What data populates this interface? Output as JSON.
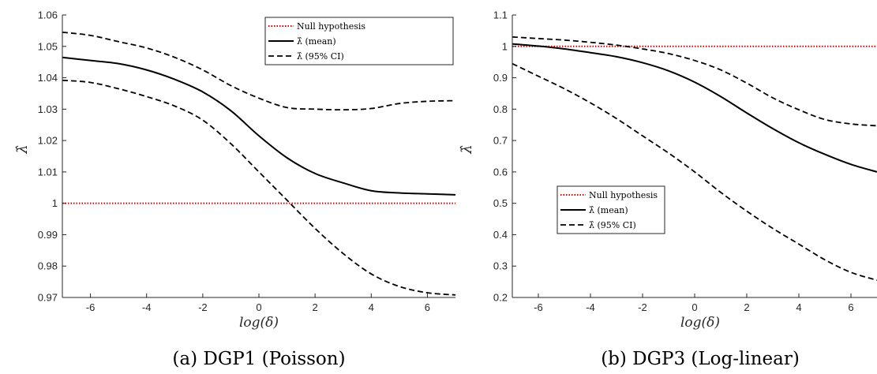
{
  "colors": {
    "null": "#e00000",
    "line": "#000000",
    "axis": "#262626"
  },
  "chart_data": [
    {
      "type": "line",
      "caption": "(a) DGP1 (Poisson)",
      "xlabel": "log(δ)",
      "ylabel": "λ̂",
      "xlim": [
        -7,
        7
      ],
      "ylim": [
        0.97,
        1.06
      ],
      "xticks": [
        -6,
        -4,
        -2,
        0,
        2,
        4,
        6
      ],
      "yticks": [
        0.97,
        0.98,
        0.99,
        1,
        1.01,
        1.02,
        1.03,
        1.04,
        1.05,
        1.06
      ],
      "ytick_labels": [
        "0.97",
        "0.98",
        "0.99",
        "1",
        "1.01",
        "1.02",
        "1.03",
        "1.04",
        "1.05",
        "1.06"
      ],
      "grid": false,
      "legend_position": "top-right",
      "x": [
        -7,
        -6,
        -5,
        -4,
        -3,
        -2,
        -1,
        0,
        1,
        2,
        3,
        4,
        5,
        6,
        7
      ],
      "series": [
        {
          "name": "Null hypothesis",
          "style": "dotted-red",
          "values": [
            1,
            1,
            1,
            1,
            1,
            1,
            1,
            1,
            1,
            1,
            1,
            1,
            1,
            1,
            1
          ]
        },
        {
          "name": "λ̂ (mean)",
          "style": "solid",
          "values": [
            1.0465,
            1.0455,
            1.0445,
            1.0425,
            1.0395,
            1.0355,
            1.0295,
            1.0215,
            1.0145,
            1.0095,
            1.0065,
            1.004,
            1.0033,
            1.003,
            1.0027
          ]
        },
        {
          "name": "λ̂ (95% CI)",
          "style": "dashed",
          "values": [
            1.0545,
            1.0535,
            1.0515,
            1.0495,
            1.0465,
            1.0425,
            1.0375,
            1.0335,
            1.0305,
            1.03,
            1.0298,
            1.0302,
            1.0318,
            1.0325,
            1.0327
          ]
        },
        {
          "name": "",
          "style": "dashed",
          "values": [
            1.0392,
            1.0385,
            1.0365,
            1.034,
            1.031,
            1.0265,
            1.019,
            1.01,
            1.001,
            0.992,
            0.984,
            0.9775,
            0.9735,
            0.9715,
            0.9708
          ]
        }
      ]
    },
    {
      "type": "line",
      "caption": "(b) DGP3 (Log-linear)",
      "xlabel": "log(δ)",
      "ylabel": "λ̂",
      "xlim": [
        -7,
        7
      ],
      "ylim": [
        0.2,
        1.1
      ],
      "xticks": [
        -6,
        -4,
        -2,
        0,
        2,
        4,
        6
      ],
      "yticks": [
        0.2,
        0.3,
        0.4,
        0.5,
        0.6,
        0.7,
        0.8,
        0.9,
        1,
        1.1
      ],
      "ytick_labels": [
        "0.2",
        "0.3",
        "0.4",
        "0.5",
        "0.6",
        "0.7",
        "0.8",
        "0.9",
        "1",
        "1.1"
      ],
      "grid": false,
      "legend_position": "center-left",
      "x": [
        -7,
        -6,
        -5,
        -4,
        -3,
        -2,
        -1,
        0,
        1,
        2,
        3,
        4,
        5,
        6,
        7
      ],
      "series": [
        {
          "name": "Null hypothesis",
          "style": "dotted-red",
          "values": [
            1,
            1,
            1,
            1,
            1,
            1,
            1,
            1,
            1,
            1,
            1,
            1,
            1,
            1,
            1
          ]
        },
        {
          "name": "λ̂ (mean)",
          "style": "solid",
          "values": [
            1.008,
            1.001,
            0.992,
            0.98,
            0.967,
            0.948,
            0.922,
            0.886,
            0.84,
            0.788,
            0.738,
            0.693,
            0.656,
            0.624,
            0.6
          ]
        },
        {
          "name": "λ̂ (95% CI)",
          "style": "dashed",
          "values": [
            1.03,
            1.025,
            1.02,
            1.013,
            1.004,
            0.992,
            0.977,
            0.955,
            0.925,
            0.883,
            0.836,
            0.798,
            0.767,
            0.753,
            0.747
          ]
        },
        {
          "name": "",
          "style": "dashed",
          "values": [
            0.945,
            0.905,
            0.865,
            0.82,
            0.77,
            0.715,
            0.66,
            0.6,
            0.535,
            0.475,
            0.42,
            0.37,
            0.32,
            0.28,
            0.255
          ]
        }
      ]
    }
  ]
}
